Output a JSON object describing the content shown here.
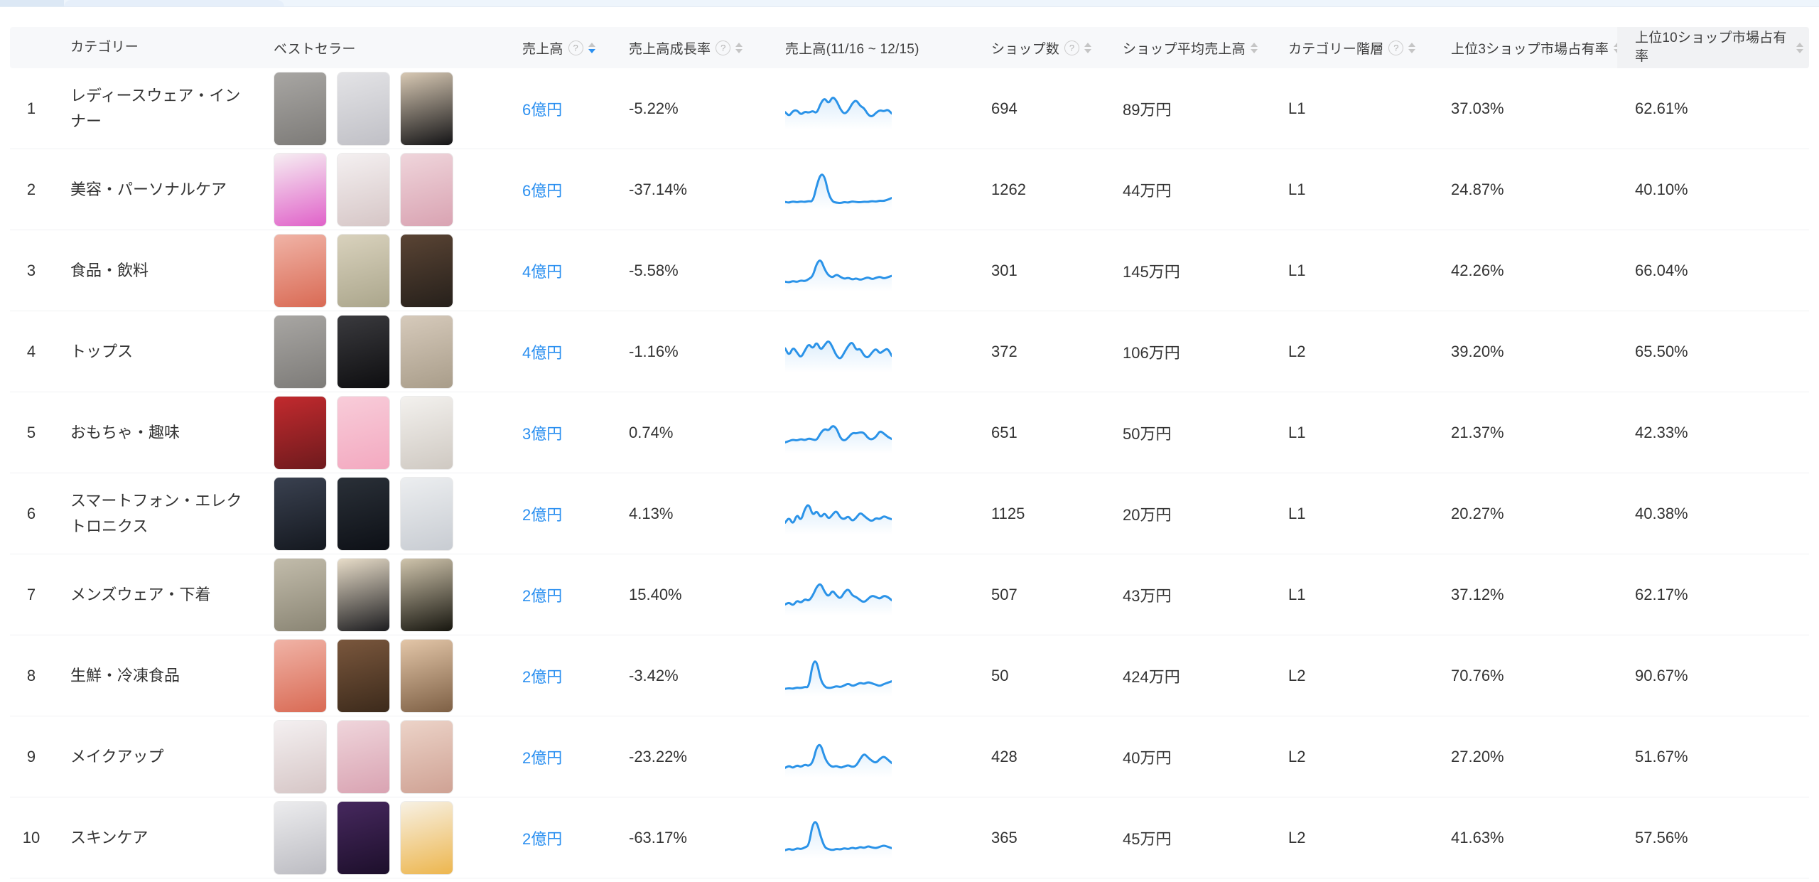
{
  "page": {
    "top_strip_colors": [
      "#dce8f5",
      "#e6effa",
      "#eef5fc"
    ],
    "accent_blue": "#2a8ff0",
    "sparkline_color": "#2b93e8",
    "header_bg": "#f7f8fa",
    "header_last_col_bg": "#f1f2f4"
  },
  "table": {
    "columns": [
      {
        "label": ""
      },
      {
        "label": "カテゴリー"
      },
      {
        "label": "ベストセラー"
      },
      {
        "label": "売上高",
        "help": true,
        "sort": "desc"
      },
      {
        "label": "売上高成長率",
        "help": true,
        "sort": "none"
      },
      {
        "label": "売上高(11/16 ~ 12/15)"
      },
      {
        "label": "ショップ数",
        "help": true,
        "sort": "none"
      },
      {
        "label": "ショップ平均売上高",
        "sort": "none"
      },
      {
        "label": "カテゴリー階層",
        "help": true,
        "sort": "none"
      },
      {
        "label": "上位3ショップ市場占有率",
        "sort": "none"
      },
      {
        "label": "上位10ショップ市場占有率",
        "sort": "none"
      }
    ],
    "rows": [
      {
        "rank": "1",
        "category": "レディースウェア・インナー",
        "sales": "6億円",
        "growth": "-5.22%",
        "shops": "694",
        "avg_sales": "89万円",
        "level": "L1",
        "top3_share": "37.03%",
        "top10_share": "62.61%",
        "thumbnails": [
          {
            "alt": "gray-knit-sweater",
            "colors": [
              "#a8a6a3",
              "#7d7b78"
            ]
          },
          {
            "alt": "light-gray-wide-pants",
            "colors": [
              "#e3e3e6",
              "#c0c0c6"
            ]
          },
          {
            "alt": "black-turtleneck-tops",
            "colors": [
              "#d8c9b4",
              "#141416"
            ]
          }
        ],
        "trend": [
          38,
          26,
          42,
          44,
          30,
          40,
          36,
          42,
          34,
          64,
          80,
          62,
          84,
          72,
          46,
          32,
          42,
          64,
          74,
          56,
          50,
          30,
          24,
          36,
          44,
          40,
          46,
          34
        ]
      },
      {
        "rank": "2",
        "category": "美容・パーソナルケア",
        "sales": "6億円",
        "growth": "-37.14%",
        "shops": "1262",
        "avg_sales": "44万円",
        "level": "L1",
        "top3_share": "24.87%",
        "top10_share": "40.10%",
        "thumbnails": [
          {
            "alt": "steam-brush-iron-ad",
            "colors": [
              "#f6eef2",
              "#e062c9"
            ]
          },
          {
            "alt": "wosado-cushion-ad",
            "colors": [
              "#f4f0f1",
              "#d6c6c6"
            ]
          },
          {
            "alt": "pink-lip-pens",
            "colors": [
              "#efd5db",
              "#d9a3b2"
            ]
          }
        ],
        "trend": [
          12,
          10,
          14,
          11,
          14,
          12,
          15,
          13,
          60,
          95,
          88,
          35,
          13,
          10,
          9,
          12,
          10,
          14,
          12,
          11,
          13,
          12,
          15,
          13,
          16,
          15,
          19,
          24
        ]
      },
      {
        "rank": "3",
        "category": "食品・飲料",
        "sales": "4億円",
        "growth": "-5.58%",
        "shops": "301",
        "avg_sales": "145万円",
        "level": "L1",
        "top3_share": "42.26%",
        "top10_share": "66.04%",
        "thumbnails": [
          {
            "alt": "crab-legs",
            "colors": [
              "#f0b3a6",
              "#d96a54"
            ]
          },
          {
            "alt": "specialty-label-bottle",
            "colors": [
              "#d9d2bd",
              "#aba68c"
            ]
          },
          {
            "alt": "beef-rice-bowls",
            "colors": [
              "#5a4434",
              "#26201b"
            ]
          }
        ],
        "trend": [
          16,
          14,
          18,
          15,
          20,
          17,
          24,
          32,
          70,
          82,
          52,
          34,
          28,
          38,
          30,
          24,
          28,
          22,
          26,
          21,
          25,
          29,
          23,
          27,
          31,
          25,
          29,
          33
        ]
      },
      {
        "rank": "4",
        "category": "トップス",
        "sales": "4億円",
        "growth": "-1.16%",
        "shops": "372",
        "avg_sales": "106万円",
        "level": "L2",
        "top3_share": "39.20%",
        "top10_share": "65.50%",
        "thumbnails": [
          {
            "alt": "gray-knit-sweater",
            "colors": [
              "#a8a6a3",
              "#7d7b78"
            ]
          },
          {
            "alt": "black-knit-top",
            "colors": [
              "#3a3a3e",
              "#0e0e10"
            ]
          },
          {
            "alt": "coats-on-rack",
            "colors": [
              "#d6cabb",
              "#a99d8a"
            ]
          }
        ],
        "trend": [
          58,
          36,
          62,
          46,
          30,
          52,
          72,
          56,
          78,
          52,
          68,
          82,
          62,
          36,
          26,
          46,
          66,
          78,
          52,
          58,
          36,
          30,
          46,
          58,
          42,
          52,
          58,
          36
        ]
      },
      {
        "rank": "5",
        "category": "おもちゃ・趣味",
        "sales": "3億円",
        "growth": "0.74%",
        "shops": "651",
        "avg_sales": "50万円",
        "level": "L1",
        "top3_share": "21.37%",
        "top10_share": "42.33%",
        "thumbnails": [
          {
            "alt": "christmas-blind-box",
            "colors": [
              "#c22a2e",
              "#6e1a1d"
            ]
          },
          {
            "alt": "daifuku-series-box",
            "colors": [
              "#f8ccd9",
              "#f3a9c0"
            ]
          },
          {
            "alt": "bearbrick-figures",
            "colors": [
              "#f3f1ee",
              "#cfc9c2"
            ]
          }
        ],
        "trend": [
          20,
          24,
          28,
          25,
          30,
          26,
          32,
          28,
          26,
          48,
          60,
          54,
          70,
          62,
          32,
          24,
          34,
          48,
          46,
          50,
          48,
          32,
          28,
          36,
          54,
          46,
          36,
          30
        ]
      },
      {
        "rank": "6",
        "category": "スマートフォン・エレクトロニクス",
        "sales": "2億円",
        "growth": "4.13%",
        "shops": "1125",
        "avg_sales": "20万円",
        "level": "L1",
        "top3_share": "20.27%",
        "top10_share": "40.38%",
        "thumbnails": [
          {
            "alt": "phone-screen-protectors",
            "colors": [
              "#3a4150",
              "#14181f"
            ]
          },
          {
            "alt": "mini-projector-dark",
            "colors": [
              "#2a3038",
              "#0d1016"
            ]
          },
          {
            "alt": "white-projector",
            "colors": [
              "#eceef0",
              "#c8ccd2"
            ]
          }
        ],
        "trend": [
          22,
          38,
          16,
          48,
          26,
          64,
          78,
          42,
          58,
          36,
          52,
          32,
          46,
          58,
          36,
          32,
          42,
          26,
          36,
          52,
          42,
          32,
          26,
          36,
          32,
          42,
          36,
          32
        ]
      },
      {
        "rank": "7",
        "category": "メンズウェア・下着",
        "sales": "2億円",
        "growth": "15.40%",
        "shops": "507",
        "avg_sales": "43万円",
        "level": "L1",
        "top3_share": "37.12%",
        "top10_share": "62.17%",
        "thumbnails": [
          {
            "alt": "camo-down-jacket",
            "colors": [
              "#c2bcab",
              "#8a8574"
            ]
          },
          {
            "alt": "black-hooded-jacket",
            "colors": [
              "#e8ddc9",
              "#1c1c1f"
            ]
          },
          {
            "alt": "black-jacket-fur-hood",
            "colors": [
              "#cfc4ac",
              "#17160f"
            ]
          }
        ],
        "trend": [
          20,
          26,
          16,
          32,
          24,
          36,
          30,
          46,
          72,
          82,
          56,
          42,
          62,
          46,
          36,
          56,
          66,
          46,
          42,
          32,
          26,
          36,
          46,
          42,
          36,
          46,
          42,
          32
        ]
      },
      {
        "rank": "8",
        "category": "生鮮・冷凍食品",
        "sales": "2億円",
        "growth": "-3.42%",
        "shops": "50",
        "avg_sales": "424万円",
        "level": "L2",
        "top3_share": "70.76%",
        "top10_share": "90.67%",
        "thumbnails": [
          {
            "alt": "crab-legs",
            "colors": [
              "#f0b3a6",
              "#d96a54"
            ]
          },
          {
            "alt": "gyudon-bowls",
            "colors": [
              "#7a573d",
              "#3c2a1b"
            ]
          },
          {
            "alt": "scallop-sashimi",
            "colors": [
              "#e3c6a8",
              "#7e6045"
            ]
          }
        ],
        "trend": [
          10,
          12,
          10,
          14,
          12,
          16,
          14,
          88,
          92,
          36,
          16,
          12,
          14,
          18,
          15,
          20,
          26,
          18,
          22,
          28,
          24,
          30,
          26,
          22,
          18,
          24,
          28,
          32
        ]
      },
      {
        "rank": "9",
        "category": "メイクアップ",
        "sales": "2億円",
        "growth": "-23.22%",
        "shops": "428",
        "avg_sales": "40万円",
        "level": "L2",
        "top3_share": "27.20%",
        "top10_share": "51.67%",
        "thumbnails": [
          {
            "alt": "wosado-cushion-ad",
            "colors": [
              "#f4f0f1",
              "#d6c6c6"
            ]
          },
          {
            "alt": "pink-lip-pens",
            "colors": [
              "#efd5db",
              "#d9a3b2"
            ]
          },
          {
            "alt": "makeup-model-face",
            "colors": [
              "#ecd3c8",
              "#cfa294"
            ]
          }
        ],
        "trend": [
          16,
          22,
          15,
          24,
          18,
          26,
          21,
          32,
          78,
          86,
          46,
          26,
          18,
          22,
          16,
          20,
          24,
          18,
          22,
          42,
          58,
          46,
          36,
          30,
          42,
          50,
          40,
          30
        ]
      },
      {
        "rank": "10",
        "category": "スキンケア",
        "sales": "2億円",
        "growth": "-63.17%",
        "shops": "365",
        "avg_sales": "45万円",
        "level": "L2",
        "top3_share": "41.63%",
        "top10_share": "57.56%",
        "thumbnails": [
          {
            "alt": "silver-pump-bottle",
            "colors": [
              "#ececee",
              "#bcbcc2"
            ]
          },
          {
            "alt": "purple-night-cream",
            "colors": [
              "#46285e",
              "#1d0f2b"
            ]
          },
          {
            "alt": "vitamin-c-skincare-set",
            "colors": [
              "#f7f1e4",
              "#edb64e"
            ]
          }
        ],
        "trend": [
          12,
          16,
          12,
          18,
          15,
          20,
          26,
          92,
          96,
          52,
          20,
          15,
          12,
          16,
          14,
          18,
          15,
          20,
          16,
          22,
          18,
          24,
          20,
          18,
          22,
          26,
          22,
          18
        ]
      }
    ]
  }
}
